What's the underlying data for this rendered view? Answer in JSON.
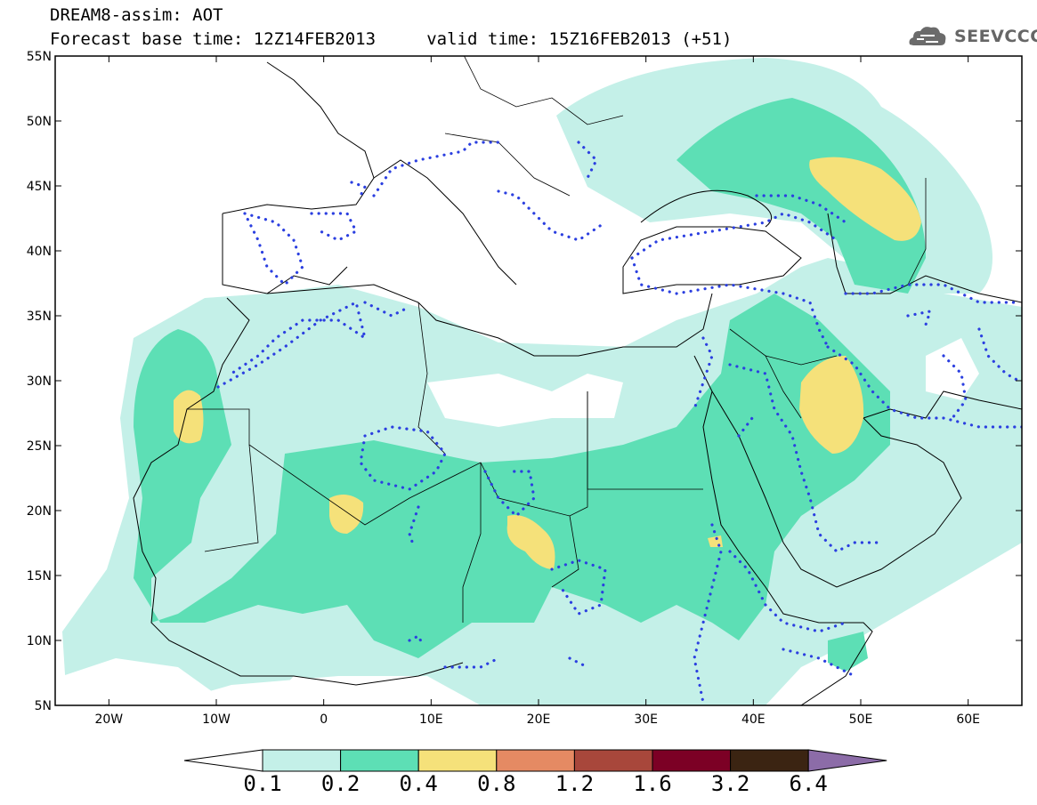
{
  "header": {
    "line1": "DREAM8-assim: AOT",
    "line2": "Forecast base time: 12Z14FEB2013     valid time: 15Z16FEB2013 (+51)"
  },
  "logo": {
    "text": "SEEVCCC",
    "icon": "cloud-icon"
  },
  "map": {
    "lat_ticks": [
      {
        "value": 55,
        "label": "55N"
      },
      {
        "value": 50,
        "label": "50N"
      },
      {
        "value": 45,
        "label": "45N"
      },
      {
        "value": 40,
        "label": "40N"
      },
      {
        "value": 35,
        "label": "35N"
      },
      {
        "value": 30,
        "label": "30N"
      },
      {
        "value": 25,
        "label": "25N"
      },
      {
        "value": 20,
        "label": "20N"
      },
      {
        "value": 15,
        "label": "15N"
      },
      {
        "value": 10,
        "label": "10N"
      },
      {
        "value": 5,
        "label": "5N"
      }
    ],
    "lon_ticks": [
      {
        "value": -20,
        "label": "20W"
      },
      {
        "value": -10,
        "label": "10W"
      },
      {
        "value": 0,
        "label": "0"
      },
      {
        "value": 10,
        "label": "10E"
      },
      {
        "value": 20,
        "label": "20E"
      },
      {
        "value": 30,
        "label": "30E"
      },
      {
        "value": 40,
        "label": "40E"
      },
      {
        "value": 50,
        "label": "50E"
      },
      {
        "value": 60,
        "label": "60E"
      }
    ],
    "lon_range": [
      -25,
      65
    ],
    "lat_range": [
      5,
      55
    ]
  },
  "colorbar": {
    "labels": [
      "0.1",
      "0.2",
      "0.4",
      "0.8",
      "1.2",
      "1.6",
      "3.2",
      "6.4"
    ],
    "colors": [
      "#ffffff",
      "#c4f0e8",
      "#5ddfb5",
      "#f5e17a",
      "#e58a63",
      "#a8473b",
      "#7c0025",
      "#3b2412",
      "#8c6ca8"
    ]
  }
}
